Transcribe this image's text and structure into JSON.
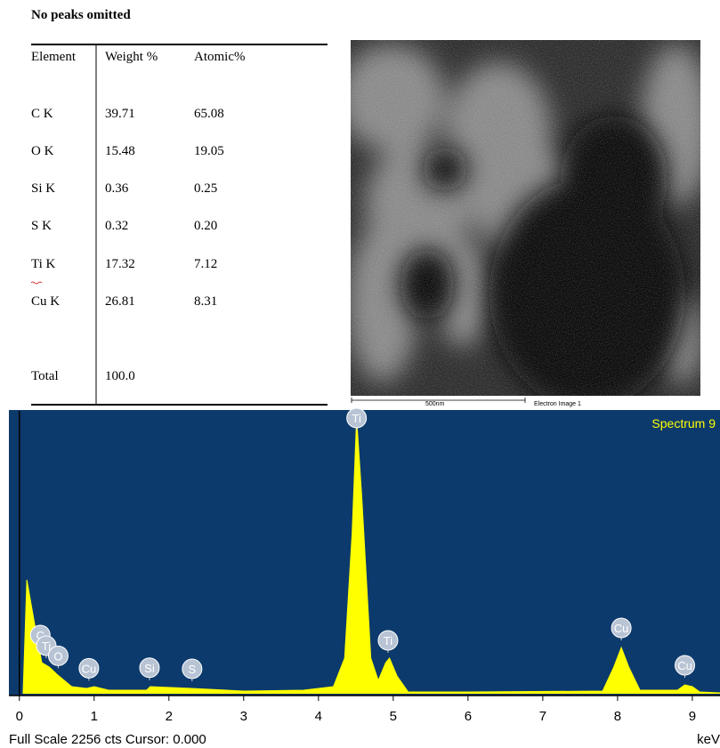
{
  "title": "No peaks omitted",
  "table": {
    "header": [
      "Element",
      "Weight %",
      "Atomic%"
    ],
    "rows": [
      [
        "C K",
        "39.71",
        "65.08"
      ],
      [
        "O K",
        "15.48",
        "19.05"
      ],
      [
        "Si K",
        "0.36",
        "0.25"
      ],
      [
        "S K",
        "0.32",
        "0.20"
      ],
      [
        "Ti K",
        "17.32",
        "7.12"
      ],
      [
        "Cu K",
        "26.81",
        "8.31"
      ],
      [
        "Total",
        "100.0",
        ""
      ]
    ]
  },
  "image": {
    "scale_bar": "500nm",
    "caption": "Electron Image 1"
  },
  "chart_data": {
    "type": "line",
    "title": "Spectrum 9",
    "footer": "Full Scale 2256 cts Cursor: 0.000",
    "xlabel": "keV",
    "color": "#ffff00",
    "xlim": [
      -0.14,
      9.37
    ],
    "ylim": [
      0,
      2256
    ],
    "xticks": [
      0,
      1,
      2,
      3,
      4,
      5,
      6,
      7,
      8,
      9
    ],
    "x": [
      0.05,
      0.1,
      0.2,
      0.3,
      0.4,
      0.5,
      0.6,
      0.7,
      0.9,
      1.0,
      1.2,
      1.7,
      1.75,
      2.3,
      3.0,
      3.8,
      4.2,
      4.35,
      4.45,
      4.51,
      4.58,
      4.7,
      4.8,
      4.9,
      4.95,
      5.05,
      5.2,
      6.0,
      7.8,
      7.95,
      8.05,
      8.15,
      8.3,
      8.8,
      8.9,
      9.0,
      9.1,
      9.37
    ],
    "values": [
      0,
      908,
      568,
      248,
      213,
      156,
      106,
      57,
      43,
      57,
      28,
      28,
      57,
      43,
      21,
      28,
      57,
      284,
      1277,
      2199,
      1561,
      284,
      106,
      248,
      284,
      142,
      14,
      14,
      21,
      213,
      369,
      213,
      28,
      28,
      71,
      57,
      14,
      7
    ],
    "peaks": [
      {
        "label": "C",
        "energy": 0.28
      },
      {
        "label": "Ti",
        "energy": 0.36
      },
      {
        "label": "O",
        "energy": 0.52
      },
      {
        "label": "Cu",
        "energy": 0.93
      },
      {
        "label": "Si",
        "energy": 1.74
      },
      {
        "label": "S",
        "energy": 2.31
      },
      {
        "label": "Ti",
        "energy": 4.51
      },
      {
        "label": "Ti",
        "energy": 4.93
      },
      {
        "label": "Cu",
        "energy": 8.05
      },
      {
        "label": "Cu",
        "energy": 8.9
      }
    ]
  }
}
